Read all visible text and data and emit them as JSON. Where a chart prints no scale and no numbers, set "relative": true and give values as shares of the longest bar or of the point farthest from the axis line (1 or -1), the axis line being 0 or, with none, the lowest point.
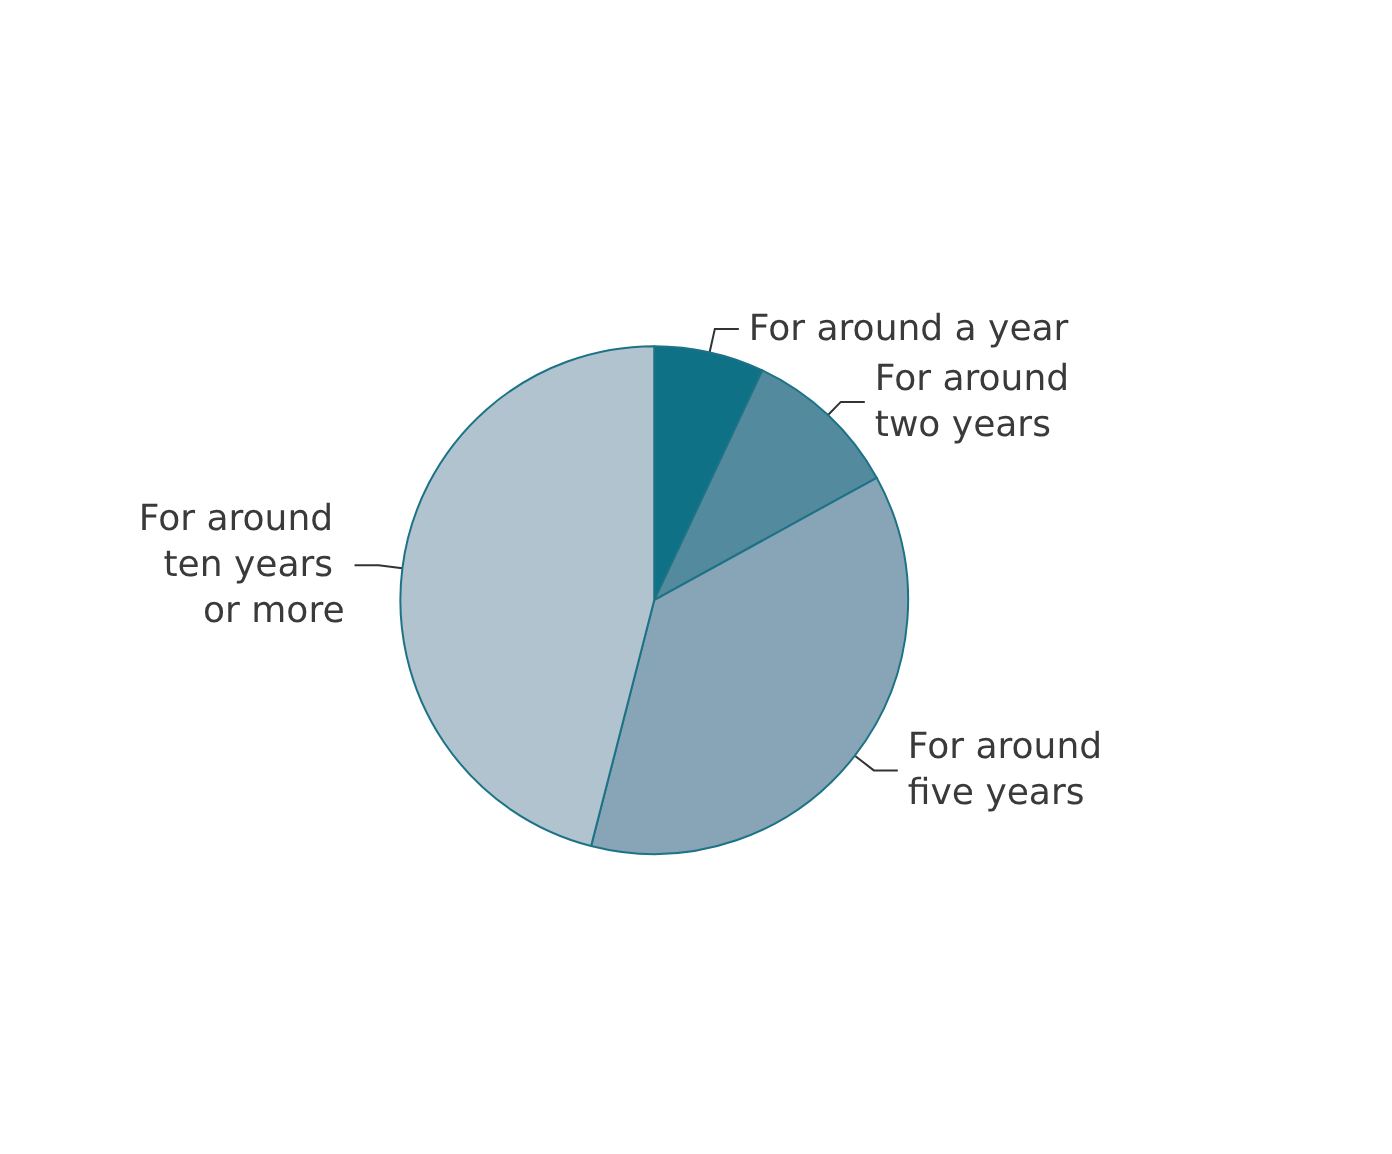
{
  "chart_data": {
    "type": "pie",
    "relative": true,
    "categories": [
      "For around a year",
      "For around two years",
      "For around five years",
      "For around ten years or more"
    ],
    "values": [
      7,
      10,
      37,
      46
    ],
    "colors": [
      "#0e7185",
      "#548a9e",
      "#87a5b6",
      "#b2c3d0"
    ],
    "legend": false
  }
}
